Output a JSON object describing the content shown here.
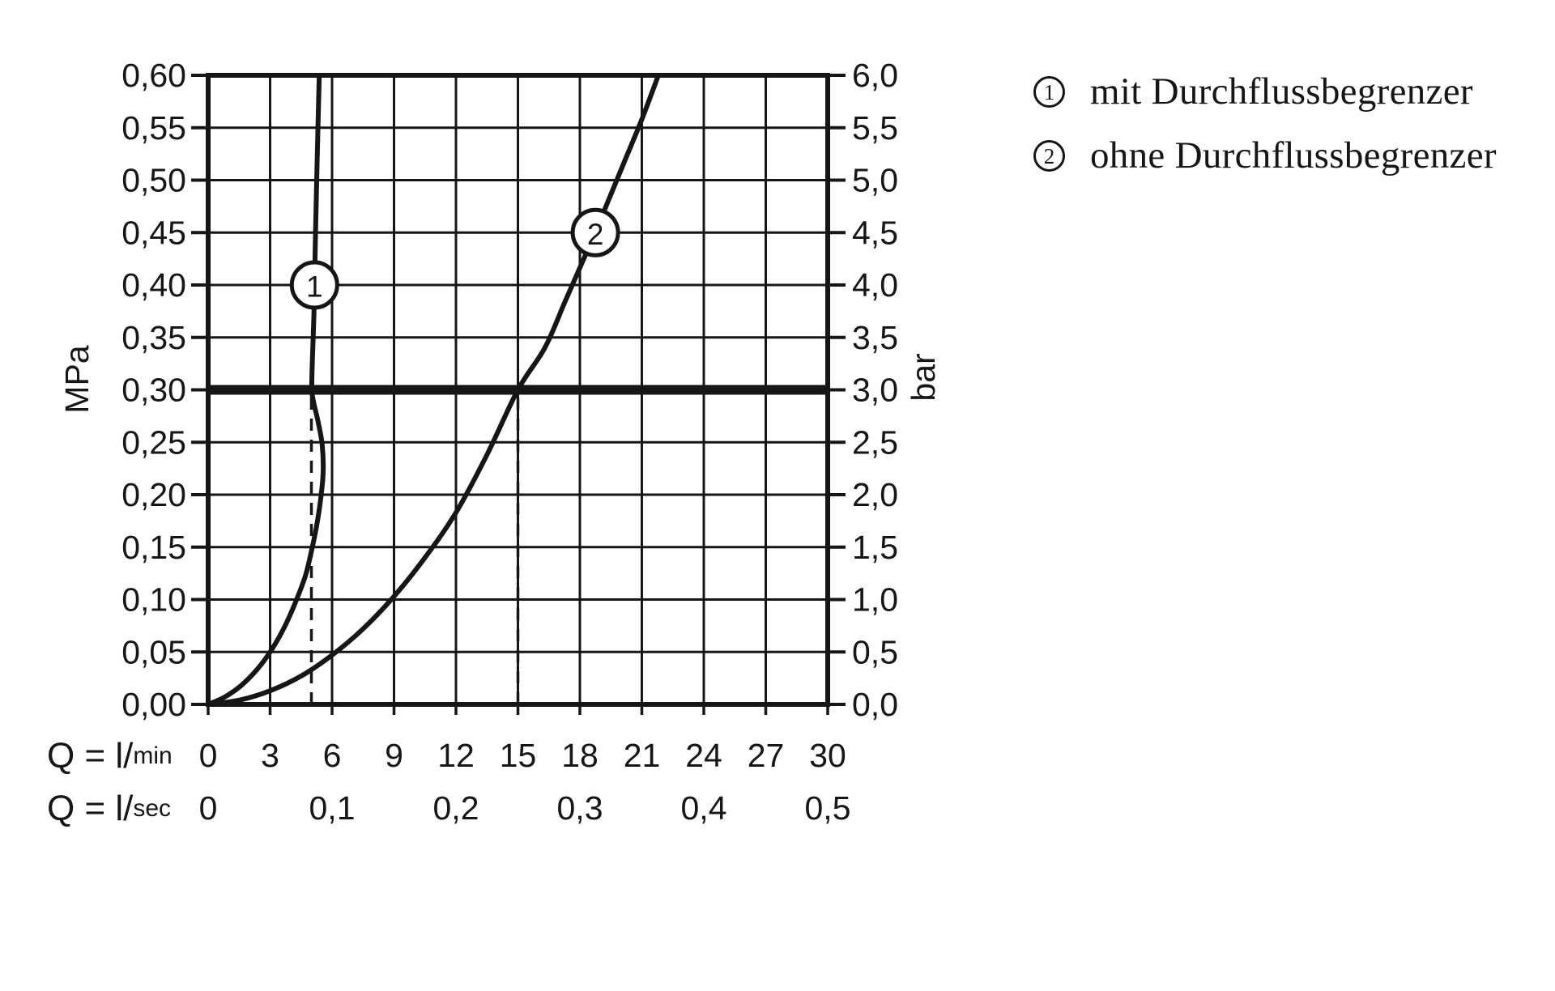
{
  "legend": {
    "items": [
      {
        "symbol": "1",
        "label": "mit Durchflussbegrenzer"
      },
      {
        "symbol": "2",
        "label": "ohne Durchflussbegrenzer"
      }
    ]
  },
  "chart_data": {
    "type": "line",
    "grid": true,
    "xlim": [
      0,
      30
    ],
    "ylim": [
      0,
      0.6
    ],
    "x_grid_step": 3,
    "y_grid_step": 0.05,
    "ink_color": "#161616",
    "x_rows": [
      {
        "prefix": "Q = l/",
        "unit": "min",
        "ticks": [
          {
            "q": 0,
            "label": "0"
          },
          {
            "q": 3,
            "label": "3"
          },
          {
            "q": 6,
            "label": "6"
          },
          {
            "q": 9,
            "label": "9"
          },
          {
            "q": 12,
            "label": "12"
          },
          {
            "q": 15,
            "label": "15"
          },
          {
            "q": 18,
            "label": "18"
          },
          {
            "q": 21,
            "label": "21"
          },
          {
            "q": 24,
            "label": "24"
          },
          {
            "q": 27,
            "label": "27"
          },
          {
            "q": 30,
            "label": "30"
          }
        ]
      },
      {
        "prefix": "Q = l/",
        "unit": "sec",
        "ticks": [
          {
            "q": 0,
            "label": "0"
          },
          {
            "q": 6,
            "label": "0,1"
          },
          {
            "q": 12,
            "label": "0,2"
          },
          {
            "q": 18,
            "label": "0,3"
          },
          {
            "q": 24,
            "label": "0,4"
          },
          {
            "q": 30,
            "label": "0,5"
          }
        ]
      }
    ],
    "y_left": {
      "unit": "MPa",
      "ticks": [
        {
          "p": 0.6,
          "label": "0,60"
        },
        {
          "p": 0.55,
          "label": "0,55"
        },
        {
          "p": 0.5,
          "label": "0,50"
        },
        {
          "p": 0.45,
          "label": "0,45"
        },
        {
          "p": 0.4,
          "label": "0,40"
        },
        {
          "p": 0.35,
          "label": "0,35"
        },
        {
          "p": 0.3,
          "label": "0,30"
        },
        {
          "p": 0.25,
          "label": "0,25"
        },
        {
          "p": 0.2,
          "label": "0,20"
        },
        {
          "p": 0.15,
          "label": "0,15"
        },
        {
          "p": 0.1,
          "label": "0,10"
        },
        {
          "p": 0.05,
          "label": "0,05"
        },
        {
          "p": 0.0,
          "label": "0,00"
        }
      ]
    },
    "y_right": {
      "unit": "bar",
      "ticks": [
        {
          "p": 0.6,
          "label": "6,0"
        },
        {
          "p": 0.55,
          "label": "5,5"
        },
        {
          "p": 0.5,
          "label": "5,0"
        },
        {
          "p": 0.45,
          "label": "4,5"
        },
        {
          "p": 0.4,
          "label": "4,0"
        },
        {
          "p": 0.35,
          "label": "3,5"
        },
        {
          "p": 0.3,
          "label": "3,0"
        },
        {
          "p": 0.25,
          "label": "2,5"
        },
        {
          "p": 0.2,
          "label": "2,0"
        },
        {
          "p": 0.15,
          "label": "1,5"
        },
        {
          "p": 0.1,
          "label": "1,0"
        },
        {
          "p": 0.05,
          "label": "0,5"
        },
        {
          "p": 0.0,
          "label": "0,0"
        }
      ]
    },
    "reference_pressure_mpa": 0.3,
    "guide_lines_lmin": [
      5,
      15
    ],
    "series": [
      {
        "id": "1",
        "name": "mit Durchflussbegrenzer",
        "marker": {
          "q": 5.15,
          "p": 0.4
        },
        "flow_at_3bar_lmin": 5,
        "points": [
          [
            0,
            0
          ],
          [
            0.8,
            0.007
          ],
          [
            1.6,
            0.018
          ],
          [
            2.4,
            0.034
          ],
          [
            3.1,
            0.053
          ],
          [
            3.7,
            0.074
          ],
          [
            4.2,
            0.096
          ],
          [
            4.7,
            0.122
          ],
          [
            5.0,
            0.146
          ],
          [
            5.25,
            0.17
          ],
          [
            5.45,
            0.196
          ],
          [
            5.57,
            0.222
          ],
          [
            5.52,
            0.248
          ],
          [
            5.32,
            0.27
          ],
          [
            5.12,
            0.287
          ],
          [
            5.02,
            0.3
          ],
          [
            5.05,
            0.33
          ],
          [
            5.12,
            0.37
          ],
          [
            5.17,
            0.42
          ],
          [
            5.2,
            0.45
          ],
          [
            5.28,
            0.52
          ],
          [
            5.38,
            0.6
          ]
        ]
      },
      {
        "id": "2",
        "name": "ohne Durchflussbegrenzer",
        "marker": {
          "q": 18.75,
          "p": 0.45
        },
        "flow_at_3bar_lmin": 15,
        "points": [
          [
            0,
            0
          ],
          [
            1.5,
            0.004
          ],
          [
            3,
            0.013
          ],
          [
            4.5,
            0.027
          ],
          [
            6,
            0.047
          ],
          [
            7.5,
            0.072
          ],
          [
            9,
            0.103
          ],
          [
            10.5,
            0.14
          ],
          [
            12,
            0.183
          ],
          [
            13.5,
            0.238
          ],
          [
            15,
            0.3
          ],
          [
            16.3,
            0.34
          ],
          [
            17.3,
            0.385
          ],
          [
            18.3,
            0.43
          ],
          [
            19.2,
            0.472
          ],
          [
            20.1,
            0.515
          ],
          [
            21,
            0.558
          ],
          [
            21.8,
            0.6
          ]
        ]
      }
    ]
  }
}
